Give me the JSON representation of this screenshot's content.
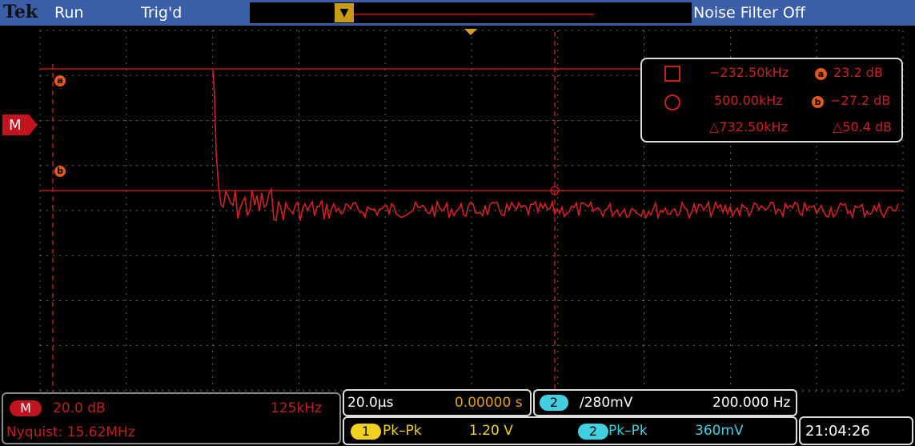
{
  "header": {
    "brand": "Tek",
    "run_state": "Run",
    "trigger_state": "Trig'd",
    "noise_filter": "Noise Filter Off"
  },
  "colors": {
    "trace": "#d42020",
    "grid": "#6a6a6a",
    "header": "#3a5fa8",
    "ch1": "#f0d020",
    "ch2": "#40d0e0"
  },
  "markers": {
    "math": "M",
    "cursor_a": "a",
    "cursor_b": "b"
  },
  "readout": {
    "freq_a": "−232.50kHz",
    "level_a": "23.2 dB",
    "freq_b": "500.00kHz",
    "level_b": "−27.2 dB",
    "delta_freq": "△732.50kHz",
    "delta_level": "△50.4 dB",
    "badge_a": "a",
    "badge_b": "b"
  },
  "math_panel": {
    "badge": "M",
    "scale": "20.0 dB",
    "span": "125kHz",
    "nyquist": "Nyquist: 15.62MHz"
  },
  "timebase": {
    "time_div": "20.0µs",
    "position": "0.00000 s"
  },
  "trigger": {
    "channel": "2",
    "level": "∕280mV",
    "frequency": "200.000 Hz"
  },
  "measurements": {
    "m1_channel": "1",
    "m1_label": "Pk–Pk",
    "m1_value": "1.20 V",
    "m2_channel": "2",
    "m2_label": "Pk–Pk",
    "m2_value": "360mV"
  },
  "clock": "21:04:26"
}
